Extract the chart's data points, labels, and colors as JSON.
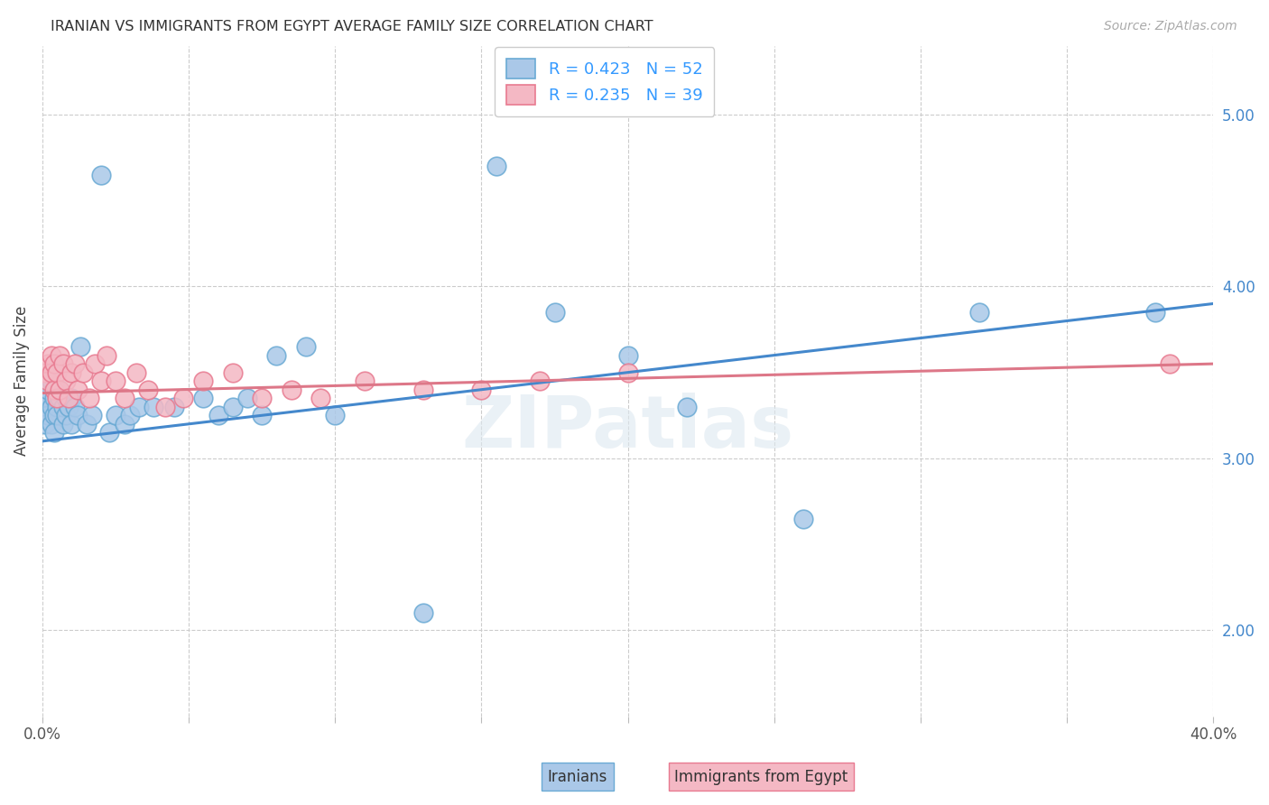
{
  "title": "IRANIAN VS IMMIGRANTS FROM EGYPT AVERAGE FAMILY SIZE CORRELATION CHART",
  "source": "Source: ZipAtlas.com",
  "ylabel": "Average Family Size",
  "y_ticks_right": [
    2.0,
    3.0,
    4.0,
    5.0
  ],
  "ylim": [
    1.5,
    5.4
  ],
  "xlim": [
    0.0,
    0.4
  ],
  "background_color": "#ffffff",
  "grid_color": "#cccccc",
  "iranians_color": "#aac8e8",
  "iranians_edge_color": "#6aaad4",
  "egypt_color": "#f4b8c4",
  "egypt_edge_color": "#e87a90",
  "line_blue": "#4488cc",
  "line_pink": "#dd7788",
  "legend_label1_color": "#3399ff",
  "legend_label2_color": "#3399ff",
  "watermark": "ZIPatlas",
  "bottom_label1": "Iranians",
  "bottom_label2": "Immigrants from Egypt",
  "iranians_x": [
    0.001,
    0.001,
    0.002,
    0.002,
    0.002,
    0.003,
    0.003,
    0.003,
    0.004,
    0.004,
    0.004,
    0.005,
    0.005,
    0.005,
    0.006,
    0.006,
    0.007,
    0.007,
    0.008,
    0.008,
    0.009,
    0.01,
    0.01,
    0.011,
    0.012,
    0.013,
    0.015,
    0.017,
    0.02,
    0.023,
    0.025,
    0.028,
    0.03,
    0.033,
    0.038,
    0.045,
    0.055,
    0.06,
    0.065,
    0.07,
    0.075,
    0.08,
    0.09,
    0.1,
    0.13,
    0.155,
    0.175,
    0.2,
    0.22,
    0.26,
    0.32,
    0.38
  ],
  "iranians_y": [
    3.3,
    3.2,
    3.35,
    3.25,
    3.4,
    3.3,
    3.2,
    3.45,
    3.25,
    3.35,
    3.15,
    3.4,
    3.3,
    3.25,
    3.35,
    3.4,
    3.2,
    3.3,
    3.35,
    3.25,
    3.3,
    3.35,
    3.2,
    3.3,
    3.25,
    3.65,
    3.2,
    3.25,
    4.65,
    3.15,
    3.25,
    3.2,
    3.25,
    3.3,
    3.3,
    3.3,
    3.35,
    3.25,
    3.3,
    3.35,
    3.25,
    3.6,
    3.65,
    3.25,
    2.1,
    4.7,
    3.85,
    3.6,
    3.3,
    2.65,
    3.85,
    3.85
  ],
  "egypt_x": [
    0.001,
    0.002,
    0.002,
    0.003,
    0.003,
    0.004,
    0.004,
    0.005,
    0.005,
    0.006,
    0.006,
    0.007,
    0.008,
    0.009,
    0.01,
    0.011,
    0.012,
    0.014,
    0.016,
    0.018,
    0.02,
    0.022,
    0.025,
    0.028,
    0.032,
    0.036,
    0.042,
    0.048,
    0.055,
    0.065,
    0.075,
    0.085,
    0.095,
    0.11,
    0.13,
    0.15,
    0.17,
    0.2,
    0.385
  ],
  "egypt_y": [
    3.5,
    3.55,
    3.45,
    3.6,
    3.5,
    3.4,
    3.55,
    3.5,
    3.35,
    3.6,
    3.4,
    3.55,
    3.45,
    3.35,
    3.5,
    3.55,
    3.4,
    3.5,
    3.35,
    3.55,
    3.45,
    3.6,
    3.45,
    3.35,
    3.5,
    3.4,
    3.3,
    3.35,
    3.45,
    3.5,
    3.35,
    3.4,
    3.35,
    3.45,
    3.4,
    3.4,
    3.45,
    3.5,
    3.55
  ],
  "iran_line_x0": 0.0,
  "iran_line_y0": 3.1,
  "iran_line_x1": 0.4,
  "iran_line_y1": 3.9,
  "egypt_line_x0": 0.0,
  "egypt_line_y0": 3.38,
  "egypt_line_x1": 0.4,
  "egypt_line_y1": 3.55
}
